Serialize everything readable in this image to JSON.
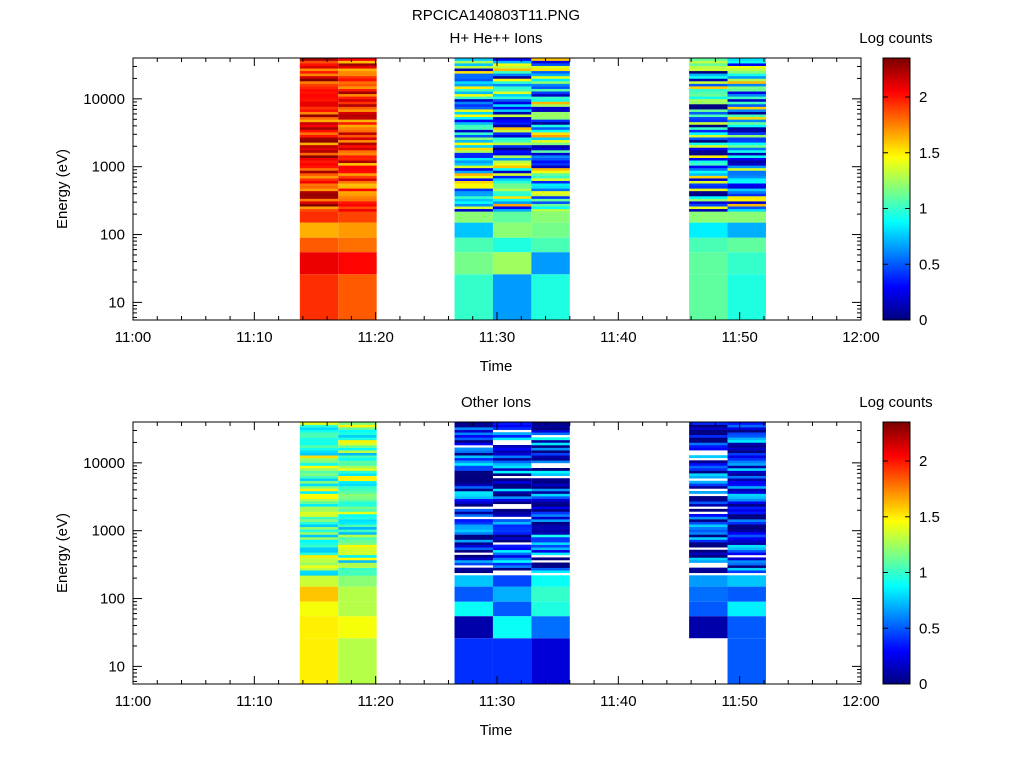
{
  "figure_title": "RPCICA140803T11.PNG",
  "colorscale": {
    "label": "Log counts",
    "min": 0,
    "max": 2.35,
    "tick_values": [
      0,
      0.5,
      1,
      1.5,
      2
    ],
    "tick_labels": [
      "0",
      "0.5",
      "1",
      "1.5",
      "2"
    ],
    "colormap": "jet"
  },
  "chart_data": [
    {
      "type": "heatmap",
      "title": "H+ He++ Ions",
      "xlabel": "Time",
      "ylabel": "Energy (eV)",
      "x_range": [
        "11:00",
        "12:00"
      ],
      "x_ticks": [
        "11:00",
        "11:10",
        "11:20",
        "11:30",
        "11:40",
        "11:50",
        "12:00"
      ],
      "y_scale": "log",
      "y_range": [
        5.5,
        40000
      ],
      "y_ticks": [
        10,
        100,
        1000,
        10000
      ],
      "y_tick_labels": [
        "10",
        "100",
        "1000",
        "10000"
      ],
      "grid": false,
      "columns": [
        {
          "start": "11:13:45",
          "end": "11:16:55",
          "low_rows": [
            1.95,
            2.1,
            1.85,
            1.65,
            1.95
          ],
          "high_base": 2.0,
          "high_var": 0.35
        },
        {
          "start": "11:16:55",
          "end": "11:20:05",
          "low_rows": [
            1.85,
            2.05,
            1.8,
            1.7,
            1.9
          ],
          "high_base": 1.95,
          "high_var": 0.35
        },
        {
          "start": "11:26:30",
          "end": "11:29:40",
          "low_rows": [
            1.0,
            1.15,
            1.05,
            0.75,
            1.2
          ],
          "high_base": 0.9,
          "high_var": 0.8
        },
        {
          "start": "11:29:40",
          "end": "11:32:50",
          "low_rows": [
            0.65,
            1.25,
            0.95,
            1.2,
            1.1
          ],
          "high_base": 0.85,
          "high_var": 0.85
        },
        {
          "start": "11:32:50",
          "end": "11:36:00",
          "low_rows": [
            0.95,
            0.65,
            1.05,
            1.15,
            1.2
          ],
          "high_base": 0.85,
          "high_var": 0.85
        },
        {
          "start": "11:45:50",
          "end": "11:49:00",
          "low_rows": [
            1.1,
            1.1,
            1.05,
            0.85,
            1.2
          ],
          "high_base": 0.75,
          "high_var": 0.85
        },
        {
          "start": "11:49:00",
          "end": "11:52:10",
          "low_rows": [
            0.95,
            1.0,
            1.1,
            0.7,
            1.2
          ],
          "high_base": 0.85,
          "high_var": 0.8
        }
      ]
    },
    {
      "type": "heatmap",
      "title": "Other Ions",
      "xlabel": "Time",
      "ylabel": "Energy (eV)",
      "x_range": [
        "11:00",
        "12:00"
      ],
      "x_ticks": [
        "11:00",
        "11:10",
        "11:20",
        "11:30",
        "11:40",
        "11:50",
        "12:00"
      ],
      "y_scale": "log",
      "y_range": [
        5.5,
        40000
      ],
      "y_ticks": [
        10,
        100,
        1000,
        10000
      ],
      "y_tick_labels": [
        "10",
        "100",
        "1000",
        "10000"
      ],
      "grid": false,
      "columns": [
        {
          "start": "11:13:45",
          "end": "11:16:55",
          "low_rows": [
            1.5,
            1.5,
            1.45,
            1.6,
            1.35
          ],
          "high_base": 1.15,
          "high_var": 0.4
        },
        {
          "start": "11:16:55",
          "end": "11:20:05",
          "low_rows": [
            1.3,
            1.45,
            1.3,
            1.3,
            1.2
          ],
          "high_base": 1.1,
          "high_var": 0.4
        },
        {
          "start": "11:26:30",
          "end": "11:29:40",
          "low_rows": [
            0.4,
            0.1,
            0.9,
            0.5,
            0.75
          ],
          "high_base": 0.3,
          "high_var": 0.55
        },
        {
          "start": "11:29:40",
          "end": "11:32:50",
          "low_rows": [
            0.4,
            0.9,
            0.5,
            0.7,
            0.45
          ],
          "high_base": 0.35,
          "high_var": 0.55
        },
        {
          "start": "11:32:50",
          "end": "11:36:00",
          "low_rows": [
            0.2,
            0.55,
            0.95,
            1.0,
            0.9
          ],
          "high_base": 0.4,
          "high_var": 0.55
        },
        {
          "start": "11:45:50",
          "end": "11:49:00",
          "low_rows": [
            null,
            0.1,
            0.5,
            0.55,
            0.65
          ],
          "high_base": 0.3,
          "high_var": 0.5
        },
        {
          "start": "11:49:00",
          "end": "11:52:10",
          "low_rows": [
            0.5,
            0.5,
            0.85,
            0.5,
            0.75
          ],
          "high_base": 0.35,
          "high_var": 0.5
        }
      ]
    }
  ]
}
